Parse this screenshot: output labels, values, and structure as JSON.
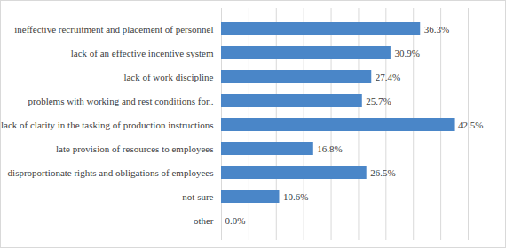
{
  "chart_data": {
    "type": "bar",
    "orientation": "horizontal",
    "categories": [
      "ineffective recruitment and placement of personnel",
      "lack of an effective incentive system",
      "lack of work discipline",
      "problems with working and rest conditions for..",
      "lack of clarity in the tasking of production instructions",
      "late provision of resources to employees",
      "disproportionate rights and obligations of employees",
      "not sure",
      "other"
    ],
    "values": [
      36.3,
      30.9,
      27.4,
      25.7,
      42.5,
      16.8,
      26.5,
      10.6,
      0.0
    ],
    "value_labels": [
      "36.3%",
      "30.9%",
      "27.4%",
      "25.7%",
      "42.5%",
      "16.8%",
      "26.5%",
      "10.6%",
      "0.0%"
    ],
    "data_labels": true,
    "color": "#4a86c8",
    "xlim": [
      0,
      45
    ],
    "xticks": [
      0,
      5,
      10,
      15,
      20,
      25,
      30,
      35,
      40,
      45
    ],
    "grid": true,
    "tick_labels": "y"
  }
}
